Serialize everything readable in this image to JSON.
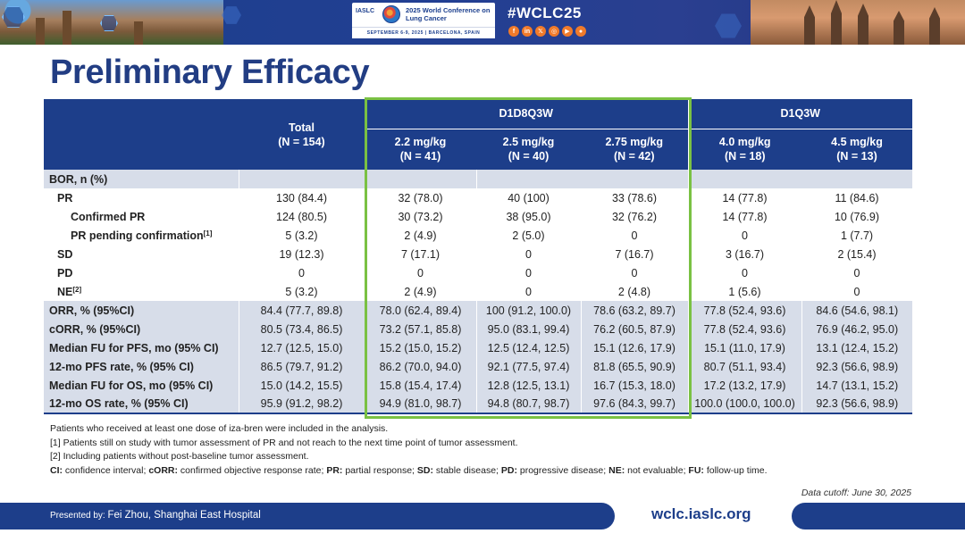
{
  "banner": {
    "org": "IASLC",
    "conference_title": "2025 World Conference on Lung Cancer",
    "dates_location": "SEPTEMBER 6-9, 2025  |  BARCELONA, SPAIN",
    "hashtag": "#WCLC25",
    "social_icons": [
      "facebook-icon",
      "linkedin-icon",
      "x-icon",
      "instagram-icon",
      "youtube-icon",
      "wechat-icon"
    ],
    "accent_color": "#1d3e8a",
    "social_color": "#f07a2a"
  },
  "title": "Preliminary Efficacy",
  "table": {
    "header": {
      "total": "Total",
      "total_n": "(N = 154)",
      "group1": "D1D8Q3W",
      "group2": "D1Q3W",
      "doses": [
        {
          "dose": "2.2 mg/kg",
          "n": "(N = 41)"
        },
        {
          "dose": "2.5 mg/kg",
          "n": "(N = 40)"
        },
        {
          "dose": "2.75 mg/kg",
          "n": "(N = 42)"
        },
        {
          "dose": "4.0 mg/kg",
          "n": "(N = 18)"
        },
        {
          "dose": "4.5 mg/kg",
          "n": "(N = 13)"
        }
      ]
    },
    "rows": {
      "bor": {
        "label": "BOR, n (%)"
      },
      "pr": {
        "label": "PR",
        "values": [
          "130 (84.4)",
          "32 (78.0)",
          "40 (100)",
          "33 (78.6)",
          "14 (77.8)",
          "11 (84.6)"
        ]
      },
      "cpr": {
        "label": "Confirmed PR",
        "values": [
          "124 (80.5)",
          "30 (73.2)",
          "38 (95.0)",
          "32 (76.2)",
          "14 (77.8)",
          "10 (76.9)"
        ]
      },
      "prpend": {
        "label": "PR pending confirmation",
        "sup": "[1]",
        "values": [
          "5 (3.2)",
          "2 (4.9)",
          "2 (5.0)",
          "0",
          "0",
          "1 (7.7)"
        ]
      },
      "sd": {
        "label": "SD",
        "values": [
          "19 (12.3)",
          "7 (17.1)",
          "0",
          "7 (16.7)",
          "3 (16.7)",
          "2 (15.4)"
        ]
      },
      "pd": {
        "label": "PD",
        "values": [
          "0",
          "0",
          "0",
          "0",
          "0",
          "0"
        ]
      },
      "ne": {
        "label": "NE",
        "sup": "[2]",
        "values": [
          "5 (3.2)",
          "2 (4.9)",
          "0",
          "2 (4.8)",
          "1 (5.6)",
          "0"
        ]
      },
      "orr": {
        "label": "ORR, % (95%CI)",
        "values": [
          "84.4 (77.7, 89.8)",
          "78.0 (62.4, 89.4)",
          "100 (91.2, 100.0)",
          "78.6 (63.2, 89.7)",
          "77.8 (52.4, 93.6)",
          "84.6 (54.6, 98.1)"
        ]
      },
      "corr": {
        "label": "cORR, % (95%CI)",
        "values": [
          "80.5 (73.4, 86.5)",
          "73.2 (57.1, 85.8)",
          "95.0 (83.1, 99.4)",
          "76.2 (60.5, 87.9)",
          "77.8 (52.4, 93.6)",
          "76.9 (46.2, 95.0)"
        ]
      },
      "fupfs": {
        "label": "Median FU for PFS, mo (95% CI)",
        "values": [
          "12.7 (12.5, 15.0)",
          "15.2 (15.0, 15.2)",
          "12.5 (12.4, 12.5)",
          "15.1 (12.6, 17.9)",
          "15.1 (11.0, 17.9)",
          "13.1 (12.4, 15.2)"
        ]
      },
      "pfs12": {
        "label": "12-mo PFS rate, % (95% CI)",
        "values": [
          "86.5 (79.7, 91.2)",
          "86.2 (70.0, 94.0)",
          "92.1 (77.5, 97.4)",
          "81.8 (65.5, 90.9)",
          "80.7 (51.1, 93.4)",
          "92.3 (56.6, 98.9)"
        ]
      },
      "fuos": {
        "label": "Median FU for OS, mo (95% CI)",
        "values": [
          "15.0 (14.2, 15.5)",
          "15.8 (15.4, 17.4)",
          "12.8 (12.5, 13.1)",
          "16.7 (15.3, 18.0)",
          "17.2 (13.2, 17.9)",
          "14.7 (13.1, 15.2)"
        ]
      },
      "os12": {
        "label": "12-mo OS rate, % (95% CI)",
        "values": [
          "95.9 (91.2, 98.2)",
          "94.9 (81.0, 98.7)",
          "94.8 (80.7, 98.7)",
          "97.6 (84.3, 99.7)",
          "100.0 (100.0, 100.0)",
          "92.3 (56.6, 98.9)"
        ]
      }
    },
    "highlight_color": "#7ac143"
  },
  "footnotes": {
    "line1": "Patients who received at least one dose of iza-bren were included in the analysis.",
    "line2": "[1] Patients still on study with tumor assessment of PR and not reach to the next time point of tumor assessment.",
    "line3": "[2] Including patients without post-baseline tumor assessment.",
    "abbrev": [
      {
        "k": "CI:",
        "v": " confidence interval; "
      },
      {
        "k": "cORR:",
        "v": " confirmed objective response rate; "
      },
      {
        "k": "PR:",
        "v": " partial response; "
      },
      {
        "k": "SD:",
        "v": " stable disease; "
      },
      {
        "k": "PD:",
        "v": " progressive disease; "
      },
      {
        "k": "NE:",
        "v": " not evaluable; "
      },
      {
        "k": "FU:",
        "v": " follow-up time."
      }
    ],
    "cutoff": "Data cutoff: June 30, 2025"
  },
  "footer": {
    "presented_prefix": "Presented by: ",
    "presenter": "Fei Zhou, Shanghai East Hospital",
    "url": "wclc.iaslc.org"
  }
}
